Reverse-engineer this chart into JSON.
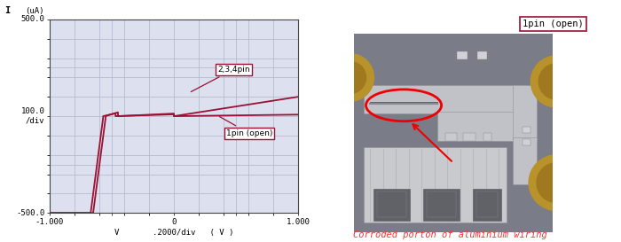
{
  "fig_width": 7.0,
  "fig_height": 2.73,
  "dpi": 100,
  "left_panel": {
    "xlim": [
      -1.0,
      1.0
    ],
    "ylim": [
      -500,
      500
    ],
    "xlabel": "V       .2000/div   ( V )",
    "ylabel_top": "I",
    "ylabel_unit": "(uA)",
    "grid_color": "#b0b4cc",
    "bg_color": "#dde0ef",
    "curve_color": "#991133",
    "label_234pin": "2,3,4pin",
    "label_1pin": "1pin (open)",
    "label_box_color": "#991133",
    "xticks": [
      -1.0,
      -0.5,
      0.0,
      0.5,
      1.0
    ],
    "xtick_labels": [
      "-1.000",
      "",
      "0",
      "",
      "1.000"
    ],
    "yticks": [
      -500,
      -250,
      0,
      250,
      500
    ],
    "ytick_labels": [
      "-500.0",
      "",
      "100.0\n/div",
      "",
      "500.0"
    ]
  },
  "right_panel": {
    "bg_color": "#888a94",
    "chip_bg": "#7a7d87",
    "wiring_light": "#c0c2c8",
    "wiring_mid": "#a8aab2",
    "gold_color": "#b8922a",
    "stripe_bg": "#c8cace",
    "stripe_line": "#d8dadf",
    "dark_feature": "#606268",
    "label_1pin": "1pin (open)",
    "label_corroded": "Corroded porton of aluminium wiring",
    "label_corroded_color": "#ff3333",
    "circle_color": "#ee0000",
    "arrow_color": "#ee0000"
  }
}
